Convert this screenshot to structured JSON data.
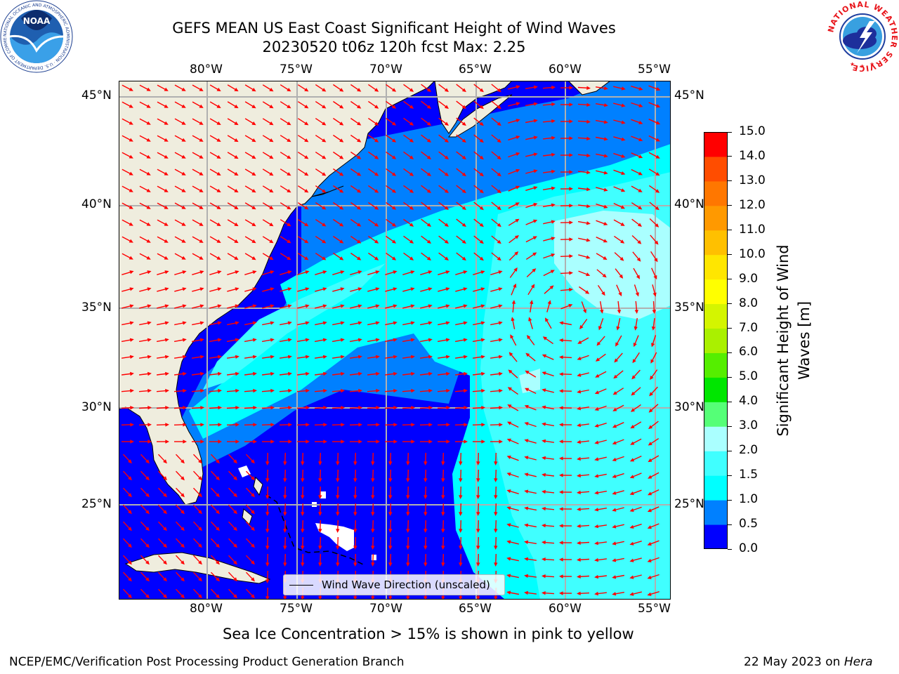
{
  "title": {
    "line1": "GEFS MEAN US East Coast Significant Height of Wind Waves",
    "line2": "20230520 t06z 120h fcst   Max: 2.25"
  },
  "logos": {
    "noaa_text": "NOAA",
    "noaa_ring": "NATIONAL OCEANIC AND ATMOSPHERIC ADMINISTRATION · U.S. DEPARTMENT OF COMMERCE",
    "nws_ring": "NATIONAL WEATHER SERVICE"
  },
  "map": {
    "lon_labels": [
      "80°W",
      "75°W",
      "70°W",
      "65°W",
      "60°W",
      "55°W"
    ],
    "lat_labels": [
      "45°N",
      "40°N",
      "35°N",
      "30°N",
      "25°N"
    ],
    "legend_label": "Wind Wave Direction (unscaled)",
    "colors": {
      "land": "#efedde",
      "sea_lt_05": "#0000ff",
      "sea_05_1": "#0080ff",
      "sea_1_15": "#00ffff",
      "sea_15_2": "#40ffff",
      "sea_2_3": "#aaffff",
      "arrows": "#ff0000",
      "grid": "#b0b0b0"
    }
  },
  "colorbar": {
    "label": "Significant Height of Wind Waves [m]",
    "ticks": [
      "0.0",
      "0.5",
      "1.0",
      "1.5",
      "2.0",
      "3.0",
      "4.0",
      "5.0",
      "6.0",
      "7.0",
      "8.0",
      "9.0",
      "10.0",
      "11.0",
      "12.0",
      "13.0",
      "14.0",
      "15.0"
    ],
    "colors": [
      "#0000ff",
      "#0080ff",
      "#00ffff",
      "#40ffff",
      "#aaffff",
      "#55ff77",
      "#00e600",
      "#55ee00",
      "#aaf000",
      "#d4f500",
      "#ffff00",
      "#ffe600",
      "#ffc000",
      "#ff9900",
      "#ff7700",
      "#ff4d00",
      "#ff0000"
    ]
  },
  "caption": "Sea Ice Concentration > 15% is shown in pink to yellow",
  "footer": {
    "left": "NCEP/EMC/Verification Post Processing Product Generation Branch",
    "date": "22 May 2023 on ",
    "machine": "Hera"
  }
}
